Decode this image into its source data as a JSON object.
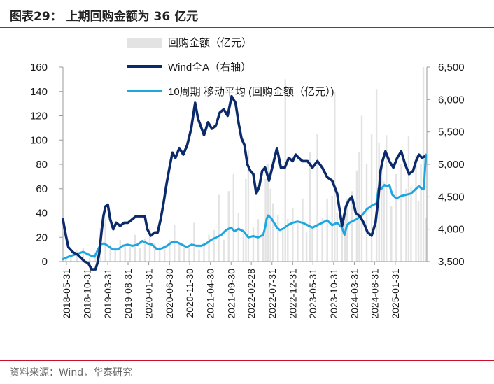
{
  "figure": {
    "title": "图表29：  上期回购金额为 36 亿元",
    "source": "资料来源：Wind，华泰研究"
  },
  "colors": {
    "bar": "#e3e3e3",
    "wind": "#0b2a6b",
    "ma": "#1ea6e0",
    "axis": "#9a9a9a",
    "text": "#1a1a1a",
    "rule": "#c8102e"
  },
  "chart_data": {
    "type": "bar",
    "title": "上期回购金额为 36 亿元",
    "legend": [
      {
        "key": "bar",
        "label": "回购金额（亿元）"
      },
      {
        "key": "wind",
        "label": "Wind全A（右轴）"
      },
      {
        "key": "ma",
        "label": "10周期 移动平均 (回购金额（亿元）)"
      }
    ],
    "legend_placement": "top-center",
    "left_axis": {
      "min": 0,
      "max": 160,
      "ticks": [
        0,
        20,
        40,
        60,
        80,
        100,
        120,
        140,
        160
      ],
      "tick_labels": [
        "0",
        "20",
        "40",
        "60",
        "80",
        "100",
        "120",
        "140",
        "160"
      ]
    },
    "right_axis": {
      "min": 3500,
      "max": 6500,
      "ticks": [
        3500,
        4000,
        4500,
        5000,
        5500,
        6000,
        6500
      ],
      "tick_labels": [
        "3,500",
        "4,000",
        "4,500",
        "5,000",
        "5,500",
        "6,000",
        "6,500"
      ]
    },
    "x_range": [
      2018.34,
      2025.72
    ],
    "x_tick_labels": [
      "2018-05-31",
      "2018-10-31",
      "2019-03-31",
      "2019-08-31",
      "2020-01-31",
      "2020-06-30",
      "2020-11-30",
      "2021-04-30",
      "2021-09-30",
      "2022-02-28",
      "2022-07-31",
      "2022-12-31",
      "2023-05-31",
      "2023-10-31",
      "2024-03-31",
      "2024-08-31",
      "2025-01-31"
    ],
    "x_tick_positions": [
      2018.41,
      2018.83,
      2019.25,
      2019.66,
      2020.08,
      2020.5,
      2020.91,
      2021.33,
      2021.75,
      2022.16,
      2022.58,
      2023.0,
      2023.41,
      2023.83,
      2024.25,
      2024.66,
      2025.08
    ],
    "series": [
      {
        "name": "Wind全A（右轴）",
        "axis": "right",
        "x": [
          2018.34,
          2018.4,
          2018.45,
          2018.5,
          2018.55,
          2018.62,
          2018.7,
          2018.78,
          2018.85,
          2018.92,
          2019.0,
          2019.04,
          2019.08,
          2019.12,
          2019.16,
          2019.2,
          2019.25,
          2019.3,
          2019.36,
          2019.42,
          2019.5,
          2019.58,
          2019.66,
          2019.74,
          2019.82,
          2019.9,
          2020.0,
          2020.05,
          2020.12,
          2020.2,
          2020.26,
          2020.32,
          2020.38,
          2020.44,
          2020.5,
          2020.56,
          2020.62,
          2020.7,
          2020.78,
          2020.86,
          2020.94,
          2021.02,
          2021.08,
          2021.13,
          2021.2,
          2021.28,
          2021.36,
          2021.44,
          2021.52,
          2021.6,
          2021.68,
          2021.76,
          2021.84,
          2021.9,
          2021.96,
          2022.02,
          2022.08,
          2022.14,
          2022.2,
          2022.26,
          2022.32,
          2022.38,
          2022.44,
          2022.52,
          2022.6,
          2022.68,
          2022.76,
          2022.84,
          2022.92,
          2023.0,
          2023.06,
          2023.12,
          2023.2,
          2023.3,
          2023.4,
          2023.5,
          2023.6,
          2023.7,
          2023.8,
          2023.9,
          2024.0,
          2024.04,
          2024.08,
          2024.14,
          2024.2,
          2024.28,
          2024.36,
          2024.44,
          2024.52,
          2024.6,
          2024.68,
          2024.74,
          2024.78,
          2024.82,
          2024.88,
          2024.96,
          2025.04,
          2025.12,
          2025.2,
          2025.28,
          2025.36,
          2025.44,
          2025.5,
          2025.56,
          2025.62,
          2025.67
        ],
        "values": [
          4150,
          3900,
          3720,
          3680,
          3640,
          3620,
          3560,
          3500,
          3480,
          3380,
          3380,
          3480,
          3650,
          3950,
          4200,
          4350,
          4380,
          4150,
          4000,
          4100,
          4050,
          4100,
          4100,
          4150,
          4200,
          4200,
          4200,
          4000,
          3900,
          3950,
          3950,
          4150,
          4400,
          4700,
          4950,
          5180,
          5100,
          5250,
          5150,
          5300,
          5550,
          5950,
          5700,
          5600,
          5450,
          5650,
          5550,
          5600,
          5800,
          5850,
          5750,
          6050,
          5950,
          5650,
          5400,
          5300,
          5000,
          4900,
          4850,
          4550,
          4650,
          4900,
          4950,
          4750,
          5000,
          5250,
          4950,
          4950,
          5100,
          5050,
          5150,
          5100,
          5050,
          5050,
          4950,
          5050,
          4950,
          4800,
          4750,
          4550,
          4050,
          4200,
          4350,
          4450,
          4500,
          4250,
          4200,
          4100,
          3950,
          3900,
          4100,
          4500,
          4900,
          5050,
          5200,
          5050,
          4950,
          5100,
          5200,
          5000,
          4850,
          4900,
          5050,
          5150,
          5100,
          5120
        ]
      },
      {
        "name": "10周期 移动平均 (回购金额（亿元）)",
        "axis": "left",
        "x": [
          2018.34,
          2018.45,
          2018.6,
          2018.75,
          2018.9,
          2018.98,
          2019.05,
          2019.1,
          2019.17,
          2019.25,
          2019.35,
          2019.45,
          2019.55,
          2019.65,
          2019.75,
          2019.85,
          2019.95,
          2020.05,
          2020.15,
          2020.25,
          2020.35,
          2020.45,
          2020.55,
          2020.65,
          2020.75,
          2020.85,
          2020.95,
          2021.05,
          2021.15,
          2021.25,
          2021.35,
          2021.45,
          2021.55,
          2021.65,
          2021.75,
          2021.82,
          2021.9,
          2022.0,
          2022.1,
          2022.2,
          2022.3,
          2022.4,
          2022.44,
          2022.47,
          2022.5,
          2022.56,
          2022.62,
          2022.68,
          2022.74,
          2022.8,
          2022.9,
          2023.0,
          2023.1,
          2023.2,
          2023.3,
          2023.4,
          2023.5,
          2023.6,
          2023.7,
          2023.8,
          2023.9,
          2024.0,
          2024.05,
          2024.1,
          2024.15,
          2024.2,
          2024.25,
          2024.3,
          2024.4,
          2024.5,
          2024.6,
          2024.7,
          2024.74,
          2024.8,
          2024.86,
          2024.9,
          2024.96,
          2025.02,
          2025.1,
          2025.2,
          2025.3,
          2025.4,
          2025.5,
          2025.56,
          2025.62,
          2025.66,
          2025.7
        ],
        "values": [
          2,
          4,
          6,
          8,
          5,
          4,
          10,
          14,
          15,
          13,
          10,
          10,
          13,
          14,
          13,
          14,
          17,
          15,
          14,
          10,
          11,
          13,
          16,
          16,
          14,
          12,
          14,
          13,
          13,
          15,
          18,
          20,
          22,
          26,
          28,
          25,
          27,
          25,
          20,
          21,
          20,
          22,
          28,
          35,
          38,
          36,
          32,
          28,
          26,
          27,
          30,
          32,
          33,
          32,
          30,
          28,
          30,
          32,
          34,
          30,
          32,
          28,
          22,
          30,
          32,
          33,
          34,
          35,
          38,
          43,
          46,
          48,
          60,
          60,
          63,
          62,
          63,
          55,
          52,
          54,
          55,
          56,
          60,
          62,
          60,
          60,
          88
        ]
      }
    ],
    "bars": {
      "name": "回购金额（亿元）",
      "axis": "left",
      "x": [
        2018.4,
        2018.5,
        2018.62,
        2018.75,
        2018.88,
        2019.0,
        2019.1,
        2019.2,
        2019.3,
        2019.4,
        2019.5,
        2019.6,
        2019.7,
        2019.8,
        2019.9,
        2020.0,
        2020.1,
        2020.2,
        2020.3,
        2020.4,
        2020.5,
        2020.6,
        2020.7,
        2020.8,
        2020.9,
        2021.0,
        2021.1,
        2021.2,
        2021.3,
        2021.4,
        2021.5,
        2021.6,
        2021.7,
        2021.8,
        2021.9,
        2022.0,
        2022.05,
        2022.1,
        2022.2,
        2022.3,
        2022.4,
        2022.45,
        2022.5,
        2022.55,
        2022.6,
        2022.7,
        2022.8,
        2022.85,
        2022.9,
        2023.0,
        2023.1,
        2023.2,
        2023.28,
        2023.35,
        2023.4,
        2023.5,
        2023.6,
        2023.7,
        2023.8,
        2023.85,
        2023.9,
        2024.0,
        2024.06,
        2024.1,
        2024.2,
        2024.3,
        2024.35,
        2024.4,
        2024.5,
        2024.6,
        2024.7,
        2024.75,
        2024.8,
        2024.85,
        2024.9,
        2025.0,
        2025.1,
        2025.2,
        2025.3,
        2025.35,
        2025.4,
        2025.5,
        2025.55,
        2025.6,
        2025.65,
        2025.7
      ],
      "values": [
        4,
        6,
        9,
        11,
        3,
        6,
        28,
        35,
        14,
        9,
        18,
        13,
        12,
        22,
        11,
        19,
        28,
        15,
        12,
        11,
        18,
        30,
        16,
        12,
        11,
        32,
        10,
        14,
        22,
        26,
        55,
        18,
        58,
        72,
        40,
        25,
        68,
        92,
        28,
        35,
        22,
        68,
        80,
        60,
        48,
        38,
        26,
        150,
        35,
        44,
        32,
        52,
        24,
        90,
        28,
        105,
        36,
        52,
        54,
        140,
        40,
        30,
        42,
        52,
        58,
        75,
        90,
        120,
        80,
        105,
        142,
        98,
        80,
        66,
        104,
        46,
        72,
        80,
        60,
        103,
        62,
        88,
        50,
        80,
        160,
        36
      ]
    }
  }
}
